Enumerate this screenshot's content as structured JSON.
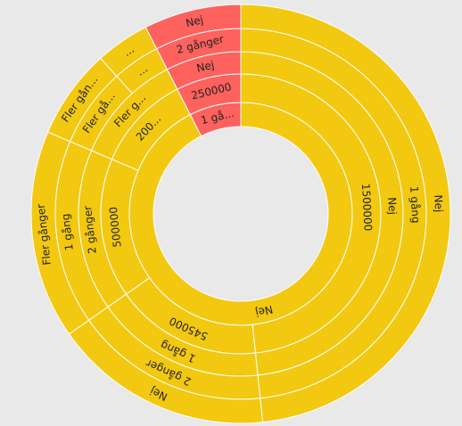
{
  "chart_data": {
    "type": "sunburst",
    "data": [
      {
        "name": "1 gå...",
        "value": 27,
        "color": "#fd625e",
        "children": [
          {
            "name": "250000",
            "value": 27,
            "children": [
              {
                "name": "Nej",
                "value": 27,
                "children": [
                  {
                    "name": "2 gånger",
                    "value": 27,
                    "children": [
                      {
                        "name": "Nej",
                        "value": 27
                      }
                    ]
                  }
                ]
              }
            ]
          }
        ]
      },
      {
        "name": "Nej",
        "value": 333,
        "color": "#f2c811",
        "children": [
          {
            "name": "1500000",
            "value": 174,
            "children": [
              {
                "name": "Nej",
                "value": 174,
                "children": [
                  {
                    "name": "1 gång",
                    "value": 174,
                    "children": [
                      {
                        "name": "Nej",
                        "value": 174
                      }
                    ]
                  }
                ]
              }
            ]
          },
          {
            "name": "545000",
            "value": 61,
            "children": [
              {
                "name": "1 gång",
                "value": 61,
                "children": [
                  {
                    "name": "2 gånger",
                    "value": 61,
                    "children": [
                      {
                        "name": "Nej",
                        "value": 61
                      }
                    ]
                  }
                ]
              }
            ]
          },
          {
            "name": "500000",
            "value": 58,
            "children": [
              {
                "name": "2 gånger",
                "value": 58,
                "children": [
                  {
                    "name": "1 gång",
                    "value": 58,
                    "children": [
                      {
                        "name": "Fler gånger",
                        "value": 58
                      }
                    ]
                  }
                ]
              }
            ]
          },
          {
            "name": "200...",
            "value": 40,
            "children": [
              {
                "name": "Fler g...",
                "value": 40,
                "children": [
                  {
                    "name": "Fler gå...",
                    "value": 25,
                    "children": [
                      {
                        "name": "Fler gån...",
                        "value": 25
                      }
                    ]
                  },
                  {
                    "name": "...",
                    "value": 15,
                    "children": [
                      {
                        "name": "...",
                        "value": 15
                      }
                    ]
                  }
                ]
              }
            ]
          }
        ]
      }
    ]
  }
}
